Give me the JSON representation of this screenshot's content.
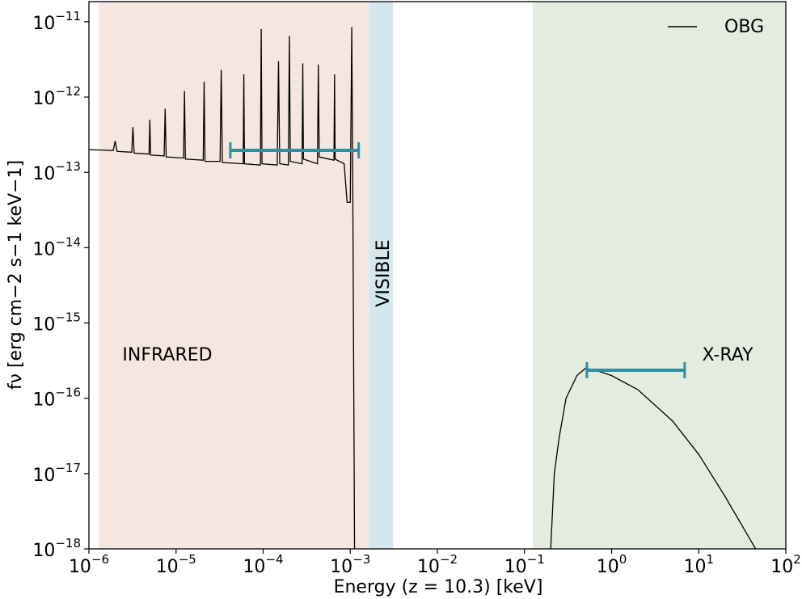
{
  "chart_data": {
    "type": "line",
    "xlabel": "Energy (z = 10.3) [keV]",
    "ylabel": "fν [erg cm−2 s−1 keV−1]",
    "xscale": "log",
    "yscale": "log",
    "xlim": [
      1e-06,
      100
    ],
    "ylim": [
      1e-18,
      1.85e-11
    ],
    "xticks": [
      {
        "value": 1e-06,
        "label": "10−6"
      },
      {
        "value": 1e-05,
        "label": "10−5"
      },
      {
        "value": 0.0001,
        "label": "10−4"
      },
      {
        "value": 0.001,
        "label": "10−3"
      },
      {
        "value": 0.01,
        "label": "10−2"
      },
      {
        "value": 0.1,
        "label": "10−1"
      },
      {
        "value": 1,
        "label": "100"
      },
      {
        "value": 10,
        "label": "101"
      },
      {
        "value": 100,
        "label": "102"
      }
    ],
    "yticks": [
      {
        "value": 1e-18,
        "label": "10−18"
      },
      {
        "value": 1e-17,
        "label": "10−17"
      },
      {
        "value": 1e-16,
        "label": "10−16"
      },
      {
        "value": 1e-15,
        "label": "10−15"
      },
      {
        "value": 1e-14,
        "label": "10−14"
      },
      {
        "value": 1e-13,
        "label": "10−13"
      },
      {
        "value": 1e-12,
        "label": "10−12"
      },
      {
        "value": 1e-11,
        "label": "10−11"
      }
    ],
    "legend": "upper right",
    "regions": [
      {
        "label": "INFRARED",
        "xmin": 1.3e-06,
        "xmax": 0.00165,
        "color": "#f5e6df"
      },
      {
        "label": "VISIBLE",
        "xmin": 0.00165,
        "xmax": 0.0031,
        "color": "#d5e7ee"
      },
      {
        "label": "X-RAY",
        "xmin": 0.124,
        "xmax": 100,
        "color": "#e4ebdf"
      }
    ],
    "bands": [
      {
        "xmin": 4.2e-05,
        "xmax": 0.00125,
        "y": 1.96e-13,
        "color": "#2e8fa3"
      },
      {
        "xmin": 0.52,
        "xmax": 6.9,
        "y": 2.36e-16,
        "color": "#2e8fa3"
      }
    ],
    "series": [
      {
        "name": "OBG",
        "color": "#000000",
        "x": [
          1e-06,
          1.9e-06,
          2e-06,
          2.1e-06,
          3.1e-06,
          3.2e-06,
          3.3e-06,
          4.9e-06,
          5e-06,
          5.1e-06,
          7.3e-06,
          7.5e-06,
          7.7e-06,
          1.22e-05,
          1.25e-05,
          1.28e-05,
          2.05e-05,
          2.1e-05,
          2.15e-05,
          3.2e-05,
          3.3e-05,
          3.4e-05,
          5.9e-05,
          6e-05,
          6.1e-05,
          9.3e-05,
          9.5e-05,
          9.7e-05,
          0.000145,
          0.00015,
          0.000155,
          0.000195,
          0.0002,
          0.000205,
          0.00028,
          0.000285,
          0.00029,
          0.00042,
          0.00043,
          0.00044,
          0.00065,
          0.00066,
          0.00067,
          0.00085,
          0.00092,
          0.001,
          0.00104,
          0.00107,
          0.00112,
          0.1,
          0.2,
          0.22,
          0.25,
          0.3,
          0.4,
          0.5,
          0.7,
          1,
          2,
          5,
          10,
          20,
          45
        ],
        "values": [
          2e-13,
          1.95e-13,
          2.6e-13,
          1.9e-13,
          1.85e-13,
          4e-13,
          1.8e-13,
          1.75e-13,
          5e-13,
          1.7e-13,
          1.65e-13,
          7e-13,
          1.6e-13,
          1.55e-13,
          1.2e-12,
          1.5e-13,
          1.45e-13,
          1.6e-12,
          1.4e-13,
          1.4e-13,
          2.3e-12,
          1.35e-13,
          1.3e-13,
          2e-12,
          1.3e-13,
          1.25e-13,
          8e-12,
          1.3e-13,
          1.25e-13,
          3e-12,
          1.3e-13,
          1.25e-13,
          6.5e-12,
          1.4e-13,
          1.3e-13,
          2.8e-12,
          1.5e-13,
          1.3e-13,
          2.7e-12,
          1.6e-13,
          1.45e-13,
          2e-12,
          1.5e-13,
          1.3e-13,
          4e-14,
          4e-14,
          8.5e-12,
          5e-14,
          1e-18,
          null,
          1e-18,
          1e-17,
          3e-17,
          1e-16,
          2e-16,
          2.5e-16,
          2.3e-16,
          2e-16,
          1.3e-16,
          5e-17,
          1.8e-17,
          5e-18,
          1e-18
        ]
      }
    ]
  }
}
